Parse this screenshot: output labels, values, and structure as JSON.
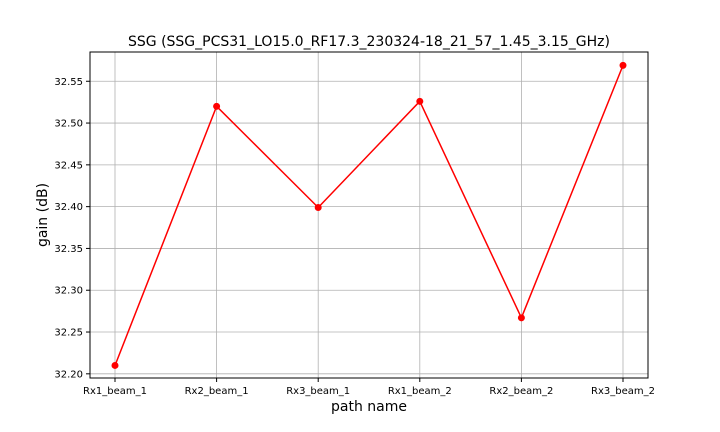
{
  "chart_data": {
    "type": "line",
    "title": "SSG (SSG_PCS31_LO15.0_RF17.3_230324-18_21_57_1.45_3.15_GHz)",
    "xlabel": "path name",
    "ylabel": "gain (dB)",
    "categories": [
      "Rx1_beam_1",
      "Rx2_beam_1",
      "Rx3_beam_1",
      "Rx1_beam_2",
      "Rx2_beam_2",
      "Rx3_beam_2"
    ],
    "series": [
      {
        "values": [
          32.21,
          32.52,
          32.399,
          32.526,
          32.267,
          32.569
        ]
      }
    ],
    "ylim": [
      32.195,
      32.585
    ],
    "yticks": [
      "32.20",
      "32.25",
      "32.30",
      "32.35",
      "32.40",
      "32.45",
      "32.50",
      "32.55"
    ],
    "grid": true,
    "line_color": "#ff0000",
    "marker": "circle"
  }
}
